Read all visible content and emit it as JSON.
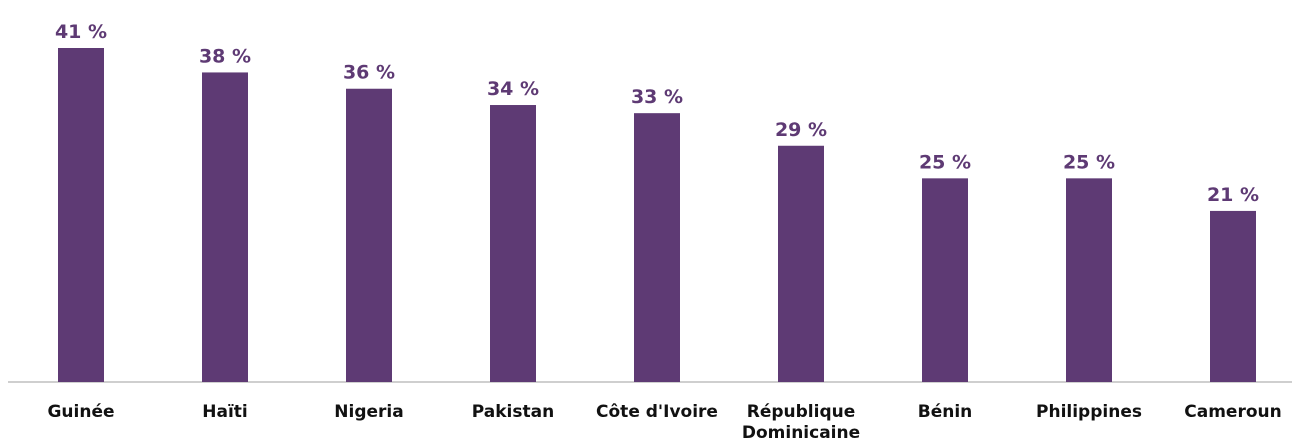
{
  "chart_data": {
    "type": "bar",
    "categories": [
      "Guinée",
      "Haïti",
      "Nigeria",
      "Pakistan",
      "Côte d'Ivoire",
      "République Dominicaine",
      "Bénin",
      "Philippines",
      "Cameroun"
    ],
    "values": [
      41,
      38,
      36,
      34,
      33,
      29,
      25,
      25,
      21
    ],
    "value_labels": [
      "41 %",
      "38 %",
      "36 %",
      "34 %",
      "33 %",
      "29 %",
      "25 %",
      "25 %",
      "21 %"
    ],
    "color": "#5e3a74"
  }
}
